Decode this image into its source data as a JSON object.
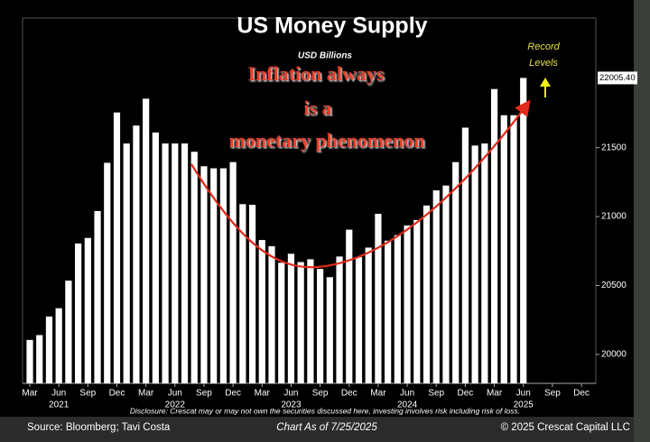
{
  "chart_data": {
    "type": "bar",
    "title": "US Money Supply",
    "subtitle": "USD Billions",
    "annotation": [
      "Inflation always",
      "is a",
      "monetary phenomenon"
    ],
    "record_note": [
      "Record",
      "Levels"
    ],
    "categories": [
      "Mar",
      null,
      null,
      "Jun",
      null,
      null,
      "Sep",
      null,
      null,
      "Dec",
      null,
      null,
      "Mar",
      null,
      null,
      "Jun",
      null,
      null,
      "Sep",
      null,
      null,
      "Dec",
      null,
      null,
      "Mar",
      null,
      null,
      "Jun",
      null,
      null,
      "Sep",
      null,
      null,
      "Dec",
      null,
      null,
      "Mar",
      null,
      null,
      "Jun",
      null,
      null,
      "Sep",
      null,
      null,
      "Dec",
      null,
      null,
      "Mar",
      null,
      null,
      "Jun",
      null,
      null,
      "Sep",
      null,
      null,
      "Dec"
    ],
    "year_labels": [
      "2021",
      "2022",
      "2023",
      "2024",
      "2025"
    ],
    "values": [
      20105,
      20140,
      20275,
      20335,
      20535,
      20805,
      20845,
      21040,
      21390,
      21755,
      21530,
      21660,
      21855,
      21610,
      21530,
      21530,
      21530,
      21470,
      21365,
      21350,
      21350,
      21395,
      21090,
      21085,
      20830,
      20785,
      20665,
      20730,
      20670,
      20690,
      20620,
      20560,
      20710,
      20905,
      20705,
      20775,
      21020,
      20825,
      20865,
      20935,
      20975,
      21080,
      21190,
      21225,
      21395,
      21645,
      21515,
      21530,
      21925,
      21735,
      21735,
      22005.4,
      null,
      null,
      null,
      null,
      null,
      null
    ],
    "last_value_label": "22005.40",
    "color": "#ffffff",
    "ylim": [
      19790,
      22440
    ],
    "yticks": [
      20000,
      20500,
      21000,
      21500
    ],
    "disclosure": "Disclosure: Crescat may or may not own the securities discussed here, investing involves risk including risk of loss.",
    "source": "Source: Bloomberg; Tavi Costa",
    "as_of": "Chart As of 7/25/2025",
    "copyright": "© 2025 Crescat Capital LLC"
  }
}
